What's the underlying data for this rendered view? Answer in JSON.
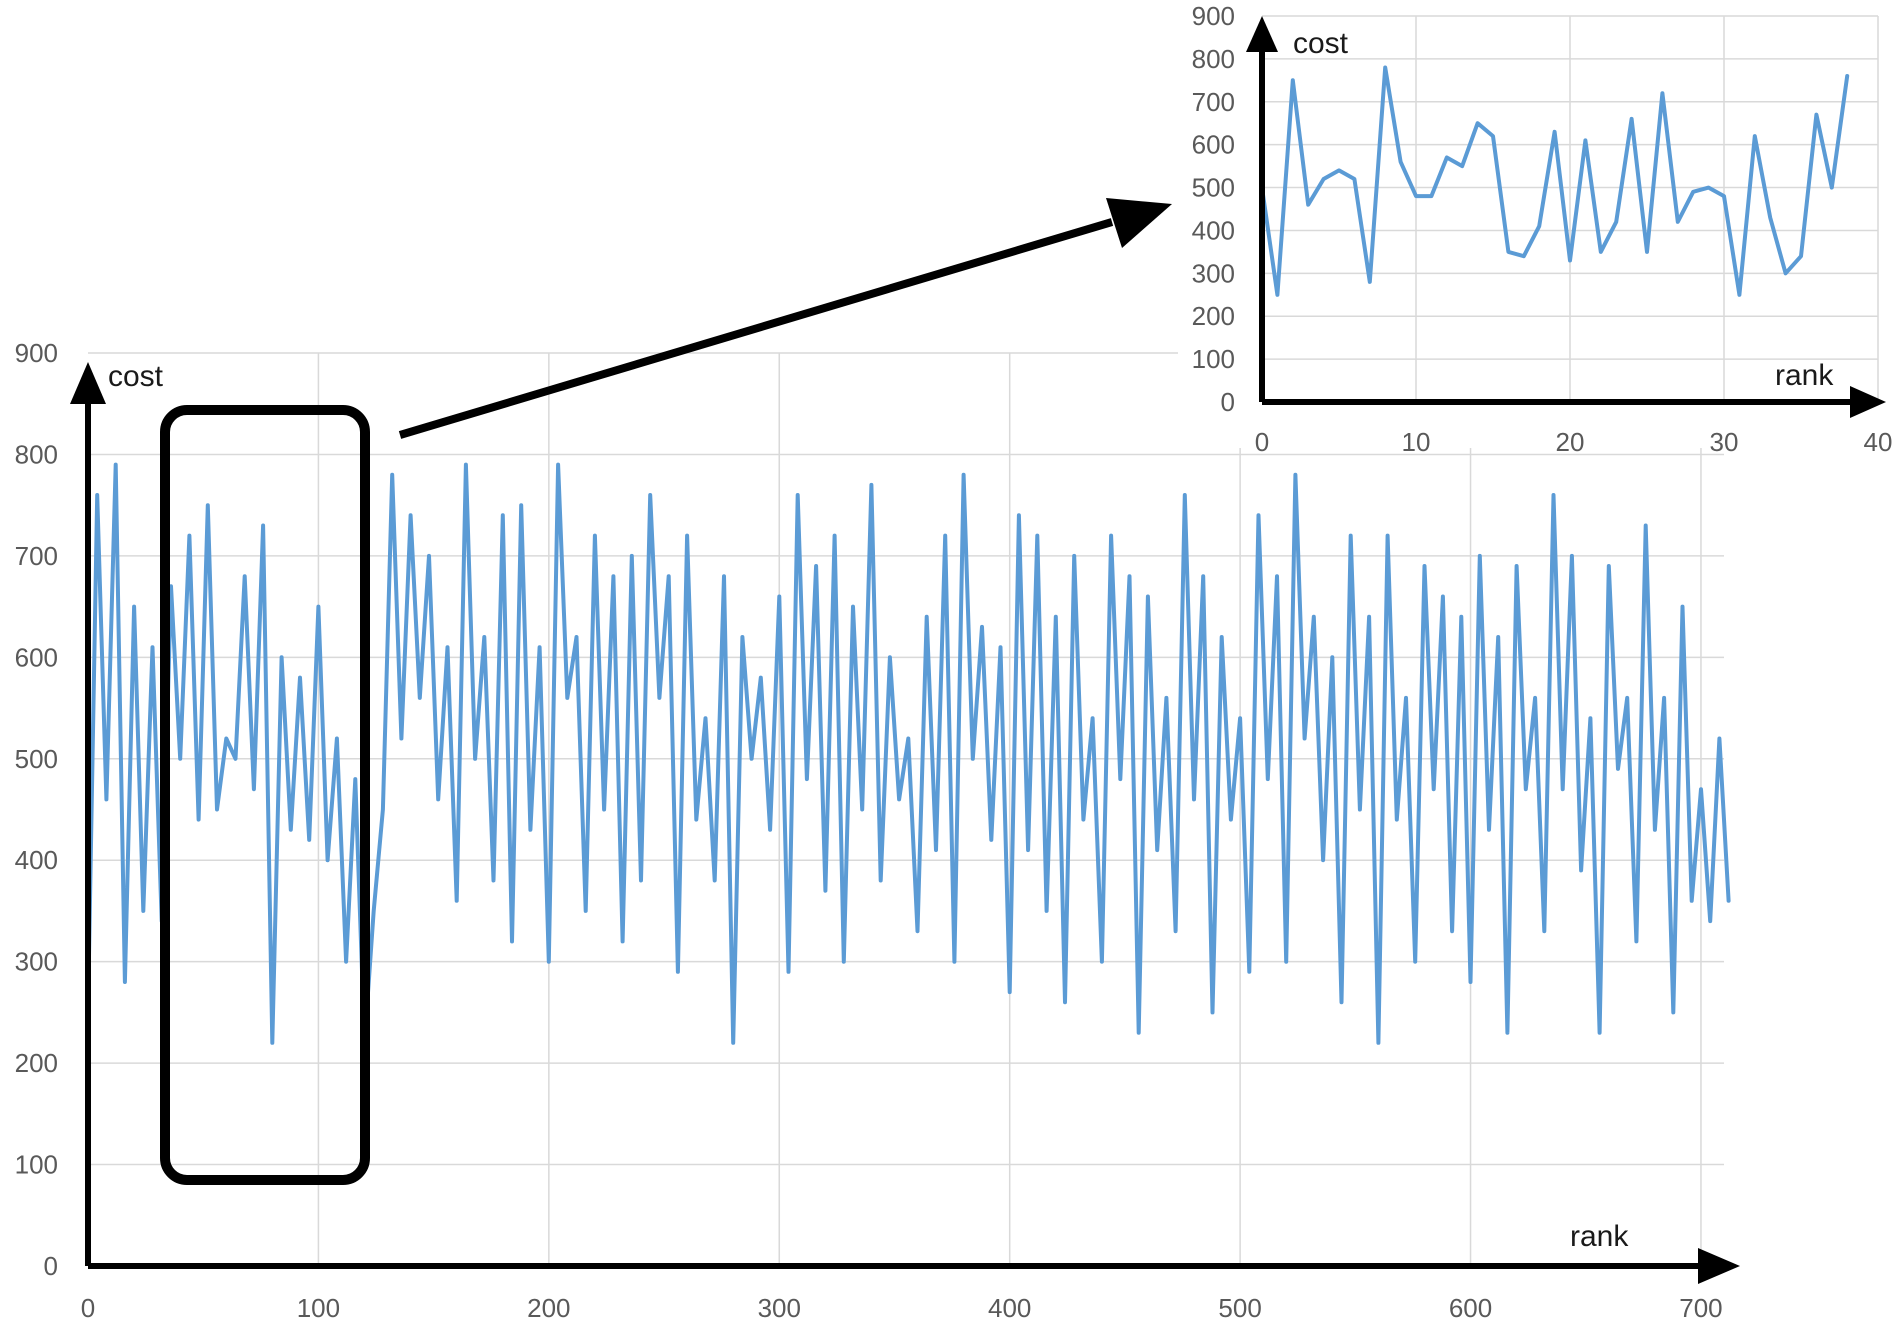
{
  "chart_data": [
    {
      "type": "line",
      "xlabel": "rank",
      "ylabel": "cost",
      "xlim": [
        0,
        710
      ],
      "ylim": [
        0,
        900
      ],
      "x_ticks": [
        0,
        100,
        200,
        300,
        400,
        500,
        600,
        700
      ],
      "y_ticks": [
        0,
        100,
        200,
        300,
        400,
        500,
        600,
        700,
        800,
        900
      ],
      "grid": true,
      "color": "#5b9bd5",
      "series": [
        {
          "x": [
            0,
            4,
            8,
            12,
            16,
            20,
            24,
            28,
            32,
            36,
            40,
            44,
            48,
            52,
            56,
            60,
            64,
            68,
            72,
            76,
            80,
            84,
            88,
            92,
            96,
            100,
            104,
            108,
            112,
            116,
            120,
            124,
            128,
            132,
            136,
            140,
            144,
            148,
            152,
            156,
            160,
            164,
            168,
            172,
            176,
            180,
            184,
            188,
            192,
            196,
            200,
            204,
            208,
            212,
            216,
            220,
            224,
            228,
            232,
            236,
            240,
            244,
            248,
            252,
            256,
            260,
            264,
            268,
            272,
            276,
            280,
            284,
            288,
            292,
            296,
            300,
            304,
            308,
            312,
            316,
            320,
            324,
            328,
            332,
            336,
            340,
            344,
            348,
            352,
            356,
            360,
            364,
            368,
            372,
            376,
            380,
            384,
            388,
            392,
            396,
            400,
            404,
            408,
            412,
            416,
            420,
            424,
            428,
            432,
            436,
            440,
            444,
            448,
            452,
            456,
            460,
            464,
            468,
            472,
            476,
            480,
            484,
            488,
            492,
            496,
            500,
            504,
            508,
            512,
            516,
            520,
            524,
            528,
            532,
            536,
            540,
            544,
            548,
            552,
            556,
            560,
            564,
            568,
            572,
            576,
            580,
            584,
            588,
            592,
            596,
            600,
            604,
            608,
            612,
            616,
            620,
            624,
            628,
            632,
            636,
            640,
            644,
            648,
            652,
            656,
            660,
            664,
            668,
            672,
            676,
            680,
            684,
            688,
            692,
            696,
            700,
            704,
            708,
            712
          ],
          "y": [
            250,
            760,
            460,
            790,
            280,
            650,
            350,
            610,
            340,
            670,
            500,
            720,
            440,
            750,
            450,
            520,
            500,
            680,
            470,
            730,
            220,
            600,
            430,
            580,
            420,
            650,
            400,
            520,
            300,
            480,
            220,
            350,
            450,
            780,
            520,
            740,
            560,
            700,
            460,
            610,
            360,
            790,
            500,
            620,
            380,
            740,
            320,
            750,
            430,
            610,
            300,
            790,
            560,
            620,
            350,
            720,
            450,
            680,
            320,
            700,
            380,
            760,
            560,
            680,
            290,
            720,
            440,
            540,
            380,
            680,
            220,
            620,
            500,
            580,
            430,
            660,
            290,
            760,
            480,
            690,
            370,
            720,
            300,
            650,
            450,
            770,
            380,
            600,
            460,
            520,
            330,
            640,
            410,
            720,
            300,
            780,
            500,
            630,
            420,
            610,
            270,
            740,
            410,
            720,
            350,
            640,
            260,
            700,
            440,
            540,
            300,
            720,
            480,
            680,
            230,
            660,
            410,
            560,
            330,
            760,
            460,
            680,
            250,
            620,
            440,
            540,
            290,
            740,
            480,
            680,
            300,
            780,
            520,
            640,
            400,
            600,
            260,
            720,
            450,
            640,
            220,
            720,
            440,
            560,
            300,
            690,
            470,
            660,
            330,
            640,
            280,
            700,
            430,
            620,
            230,
            690,
            470,
            560,
            330,
            760,
            470,
            700,
            390,
            540,
            230,
            690,
            490,
            560,
            320,
            730,
            430,
            560,
            250,
            650,
            360,
            470,
            340,
            520,
            360
          ]
        }
      ]
    },
    {
      "type": "line",
      "xlabel": "rank",
      "ylabel": "cost",
      "xlim": [
        0,
        40
      ],
      "ylim": [
        0,
        900
      ],
      "x_ticks": [
        0,
        10,
        20,
        30,
        40
      ],
      "y_ticks": [
        0,
        100,
        200,
        300,
        400,
        500,
        600,
        700,
        800,
        900
      ],
      "grid": true,
      "color": "#5b9bd5",
      "series": [
        {
          "x": [
            0,
            1,
            2,
            3,
            4,
            5,
            6,
            7,
            8,
            9,
            10,
            11,
            12,
            13,
            14,
            15,
            16,
            17,
            18,
            19,
            20,
            21,
            22,
            23,
            24,
            25,
            26,
            27,
            28,
            29,
            30,
            31,
            32,
            33,
            34,
            35,
            36,
            37,
            38
          ],
          "y": [
            500,
            250,
            750,
            460,
            520,
            540,
            520,
            280,
            780,
            560,
            480,
            480,
            570,
            550,
            650,
            620,
            350,
            340,
            410,
            630,
            330,
            610,
            350,
            420,
            660,
            350,
            720,
            420,
            490,
            500,
            480,
            250,
            620,
            430,
            300,
            340,
            670,
            500,
            760
          ]
        }
      ]
    }
  ]
}
